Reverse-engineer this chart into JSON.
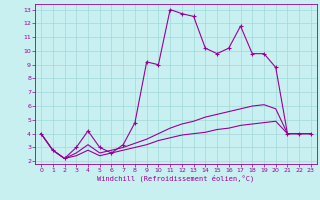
{
  "xlabel": "Windchill (Refroidissement éolien,°C)",
  "bg_color": "#c8f0f0",
  "grid_color": "#a0d8d8",
  "line_color": "#990099",
  "xlim": [
    -0.5,
    23.5
  ],
  "ylim": [
    1.8,
    13.4
  ],
  "xticks": [
    0,
    1,
    2,
    3,
    4,
    5,
    6,
    7,
    8,
    9,
    10,
    11,
    12,
    13,
    14,
    15,
    16,
    17,
    18,
    19,
    20,
    21,
    22,
    23
  ],
  "yticks": [
    2,
    3,
    4,
    5,
    6,
    7,
    8,
    9,
    10,
    11,
    12,
    13
  ],
  "line1_x": [
    0,
    1,
    2,
    3,
    4,
    5,
    6,
    7,
    8,
    9,
    10,
    11,
    12,
    13,
    14,
    15,
    16,
    17,
    18,
    19,
    20,
    21,
    22,
    23
  ],
  "line1_y": [
    4.0,
    2.8,
    2.2,
    3.0,
    4.2,
    3.0,
    2.6,
    3.2,
    4.8,
    9.2,
    9.0,
    13.0,
    12.7,
    12.5,
    10.2,
    9.8,
    10.2,
    11.8,
    9.8,
    9.8,
    8.8,
    4.0,
    4.0,
    4.0
  ],
  "line2_x": [
    0,
    1,
    2,
    3,
    4,
    5,
    6,
    7,
    8,
    9,
    10,
    11,
    12,
    13,
    14,
    15,
    16,
    17,
    18,
    19,
    20,
    21,
    22,
    23
  ],
  "line2_y": [
    4.0,
    2.8,
    2.2,
    2.6,
    3.2,
    2.6,
    2.8,
    3.0,
    3.3,
    3.6,
    4.0,
    4.4,
    4.7,
    4.9,
    5.2,
    5.4,
    5.6,
    5.8,
    6.0,
    6.1,
    5.8,
    4.0,
    4.0,
    4.0
  ],
  "line3_x": [
    0,
    1,
    2,
    3,
    4,
    5,
    6,
    7,
    8,
    9,
    10,
    11,
    12,
    13,
    14,
    15,
    16,
    17,
    18,
    19,
    20,
    21,
    22,
    23
  ],
  "line3_y": [
    4.0,
    2.8,
    2.2,
    2.4,
    2.8,
    2.4,
    2.6,
    2.8,
    3.0,
    3.2,
    3.5,
    3.7,
    3.9,
    4.0,
    4.1,
    4.3,
    4.4,
    4.6,
    4.7,
    4.8,
    4.9,
    4.0,
    4.0,
    4.0
  ],
  "lw": 0.8,
  "ms": 2.5,
  "mew": 0.8
}
